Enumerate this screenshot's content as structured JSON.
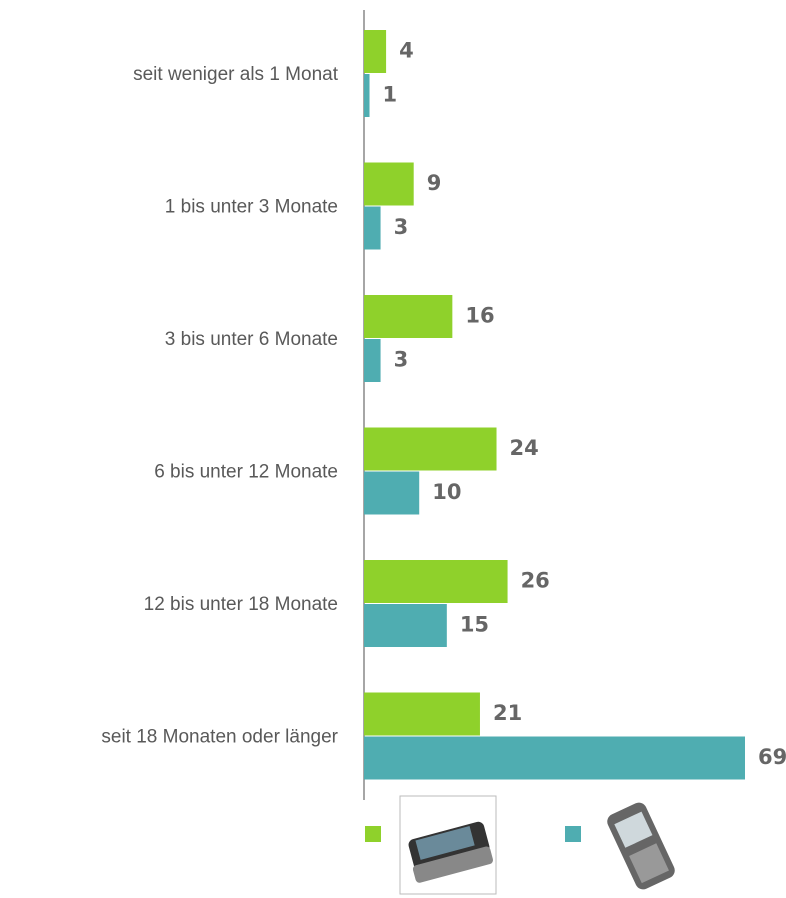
{
  "chart_data": {
    "type": "grouped-horizontal-bar",
    "categories": [
      "seit weniger als 1 Monat",
      "1 bis unter 3 Monate",
      "3 bis unter 6 Monate",
      "6 bis unter 12 Monate",
      "12 bis unter 18 Monate",
      "seit 18 Monaten oder länger"
    ],
    "series": [
      {
        "color": "#8fd12b",
        "values": [
          4,
          9,
          16,
          24,
          26,
          21
        ]
      },
      {
        "color": "#4fadb1",
        "values": [
          1,
          3,
          3,
          10,
          15,
          69
        ]
      }
    ]
  }
}
